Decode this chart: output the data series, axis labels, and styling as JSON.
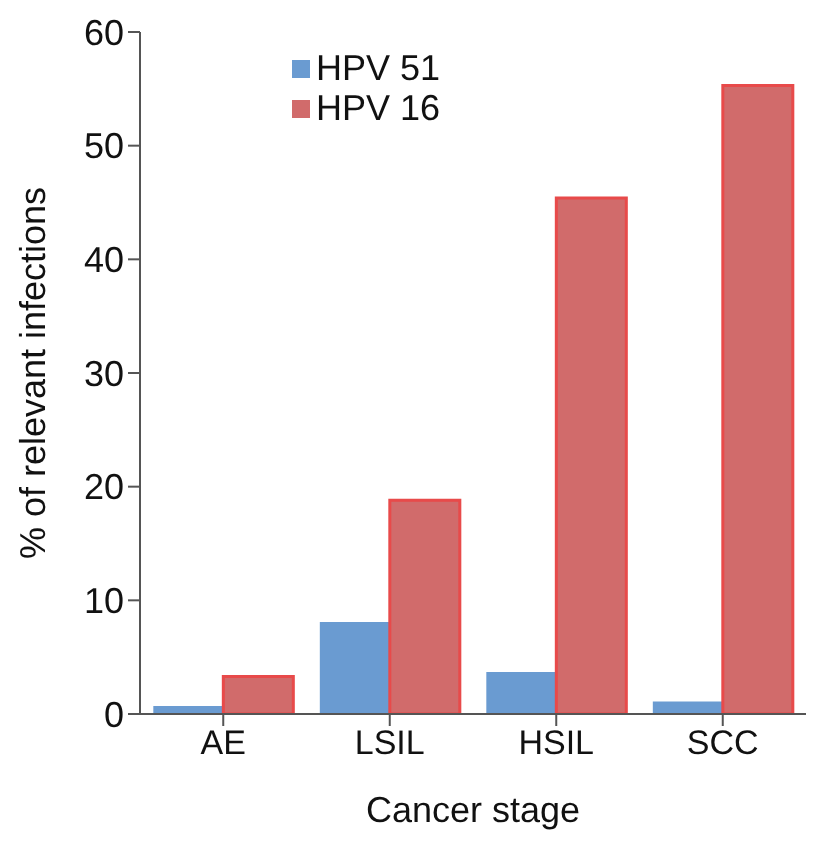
{
  "chart_data": {
    "type": "bar",
    "xlabel": "Cancer stage",
    "ylabel": "% of relevant infections",
    "categories": [
      "AE",
      "LSIL",
      "HSIL",
      "SCC"
    ],
    "series": [
      {
        "name": "HPV 51",
        "color": "#6a9bd1",
        "values": [
          0.7,
          8.1,
          3.7,
          1.1
        ]
      },
      {
        "name": "HPV 16",
        "color": "#d16b6b",
        "values": [
          3.3,
          18.8,
          45.4,
          55.3
        ]
      }
    ],
    "ylim": [
      0,
      60
    ],
    "yticks": [
      0,
      10,
      20,
      30,
      40,
      50,
      60
    ],
    "grid": false,
    "legend": "top left"
  }
}
